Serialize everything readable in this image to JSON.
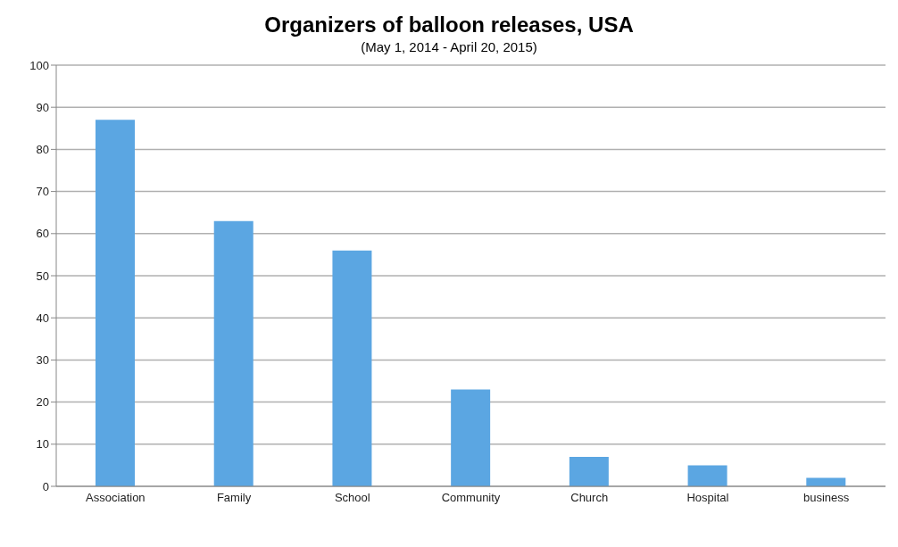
{
  "chart_data": {
    "type": "bar",
    "title": "Organizers of balloon releases, USA",
    "subtitle": "(May 1, 2014 - April 20, 2015)",
    "categories": [
      "Association",
      "Family",
      "School",
      "Community",
      "Church",
      "Hospital",
      "business"
    ],
    "values": [
      87,
      63,
      56,
      23,
      7,
      5,
      2
    ],
    "color": "#5ba6e2",
    "ylim": [
      0,
      100
    ],
    "yticks": [
      0,
      10,
      20,
      30,
      40,
      50,
      60,
      70,
      80,
      90,
      100
    ],
    "grid": "y"
  }
}
